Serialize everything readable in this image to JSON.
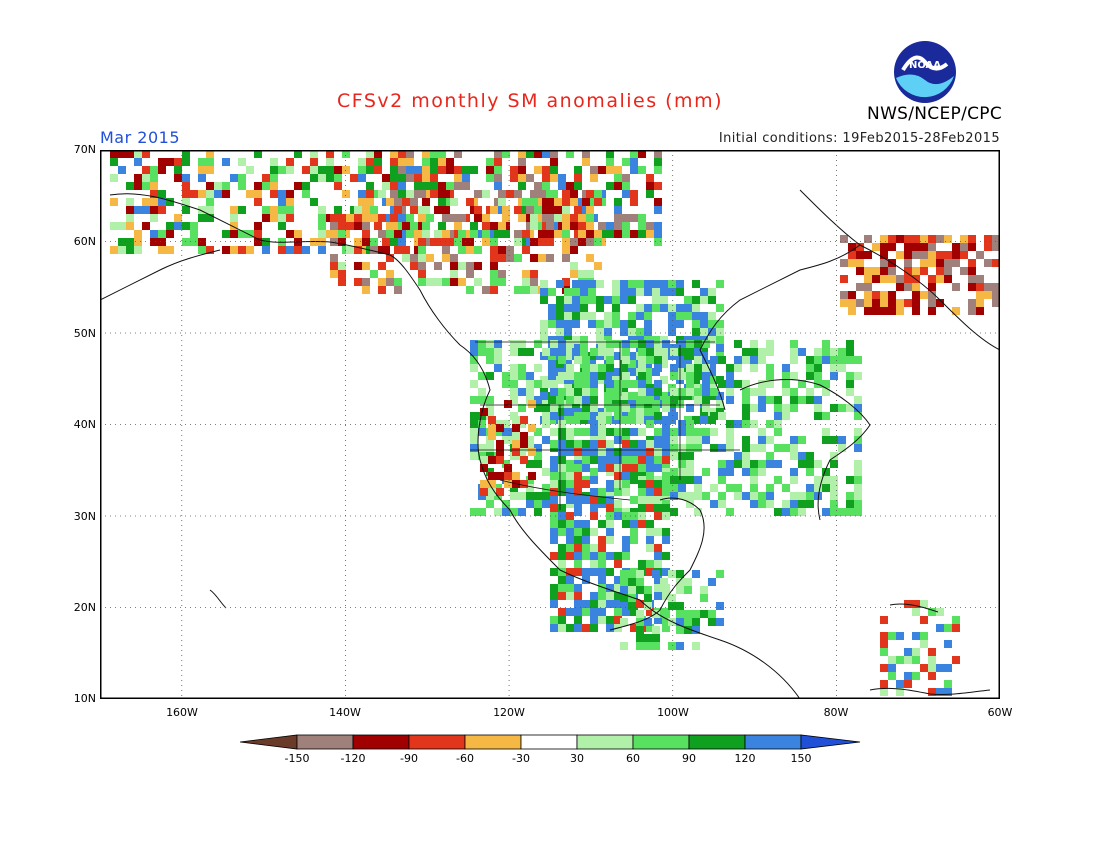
{
  "header": {
    "title": "CFSv2 monthly SM anomalies (mm)",
    "month": "Mar 2015",
    "initial_conditions": "Initial conditions: 19Feb2015-28Feb2015",
    "agency": "NWS/NCEP/CPC",
    "logo_text": "NOAA"
  },
  "axes": {
    "lat_labels": [
      "70N",
      "60N",
      "50N",
      "40N",
      "30N",
      "20N",
      "10N"
    ],
    "lon_labels": [
      "160W",
      "140W",
      "120W",
      "100W",
      "80W",
      "60W"
    ],
    "lat_range": [
      10,
      70
    ],
    "lon_range": [
      -170,
      -60
    ]
  },
  "colorbar": {
    "labels": [
      "-150",
      "-120",
      "-90",
      "-60",
      "-30",
      "30",
      "60",
      "90",
      "120",
      "150"
    ],
    "colors": [
      "#6b3b2a",
      "#a0807a",
      "#a00000",
      "#e2361c",
      "#f5b844",
      "#ffffff",
      "#b0f0a8",
      "#58e060",
      "#10a020",
      "#3a84e0",
      "#2050d8"
    ]
  },
  "regions": [
    {
      "name": "central-us-wet",
      "color": "#2f7fe0"
    },
    {
      "name": "southwest-wet",
      "color": "#2f7fe0"
    },
    {
      "name": "east-us-moist",
      "color": "#58e060"
    },
    {
      "name": "west-canada-dry",
      "color": "#f5b844"
    },
    {
      "name": "quebec-dry",
      "color": "#e2361c"
    }
  ]
}
